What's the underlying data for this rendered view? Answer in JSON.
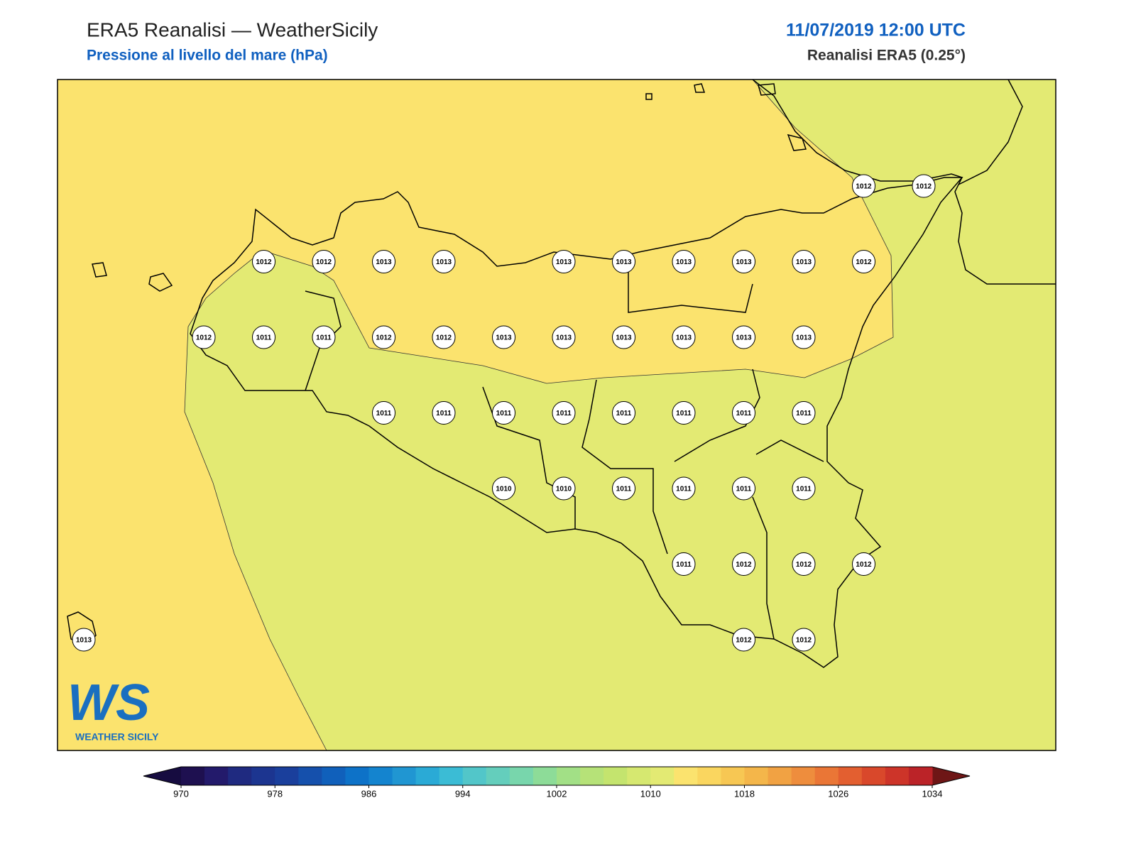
{
  "header": {
    "title": "ERA5 Reanalisi — WeatherSicily",
    "subtitle": "Pressione al livello del mare (hPa)",
    "datetime": "11/07/2019 12:00 UTC",
    "source": "Reanalisi ERA5 (0.25°)"
  },
  "stations": {
    "rows": [
      [
        null,
        null,
        null,
        null,
        null,
        null,
        null,
        null,
        null,
        null,
        null,
        null,
        null,
        1012,
        1012
      ],
      [
        null,
        null,
        null,
        1012,
        1012,
        1013,
        1013,
        null,
        1013,
        1013,
        1013,
        1013,
        1013,
        1012,
        null
      ],
      [
        null,
        null,
        1012,
        1011,
        1011,
        1012,
        1012,
        1013,
        1013,
        1013,
        1013,
        1013,
        1013,
        null,
        null
      ],
      [
        null,
        null,
        null,
        null,
        null,
        1011,
        1011,
        1011,
        1011,
        1011,
        1011,
        1011,
        1011,
        null,
        null
      ],
      [
        null,
        null,
        null,
        null,
        null,
        null,
        null,
        1010,
        1010,
        1011,
        1011,
        1011,
        1011,
        null,
        null
      ],
      [
        null,
        null,
        null,
        null,
        null,
        null,
        null,
        null,
        null,
        null,
        1011,
        1012,
        1012,
        1012,
        null
      ],
      [
        1013,
        null,
        null,
        null,
        null,
        null,
        null,
        null,
        null,
        null,
        null,
        1012,
        1012,
        null,
        null
      ]
    ]
  },
  "colorbar": {
    "range": [
      970,
      1034
    ],
    "ticks": [
      970,
      978,
      986,
      994,
      1002,
      1010,
      1018,
      1026,
      1034
    ],
    "colors": [
      "#1e1050",
      "#231a6b",
      "#1f2a80",
      "#1c3590",
      "#1a3f9c",
      "#1550ac",
      "#1060bb",
      "#0d72c8",
      "#1484cf",
      "#2096d2",
      "#2aaad6",
      "#3bbcd5",
      "#52c6c9",
      "#64cebc",
      "#78d6ac",
      "#8ddc98",
      "#a2e086",
      "#b6e278",
      "#c4e46e",
      "#d6e870",
      "#e3ea73",
      "#fbe36e",
      "#fad65f",
      "#f7c753",
      "#f4b64a",
      "#f1a243",
      "#ee8d3d",
      "#ea7636",
      "#e35f30",
      "#d9482b",
      "#cd3429",
      "#bb2328"
    ]
  },
  "logo": {
    "mark": "WS",
    "name": "WEATHER SICILY"
  }
}
